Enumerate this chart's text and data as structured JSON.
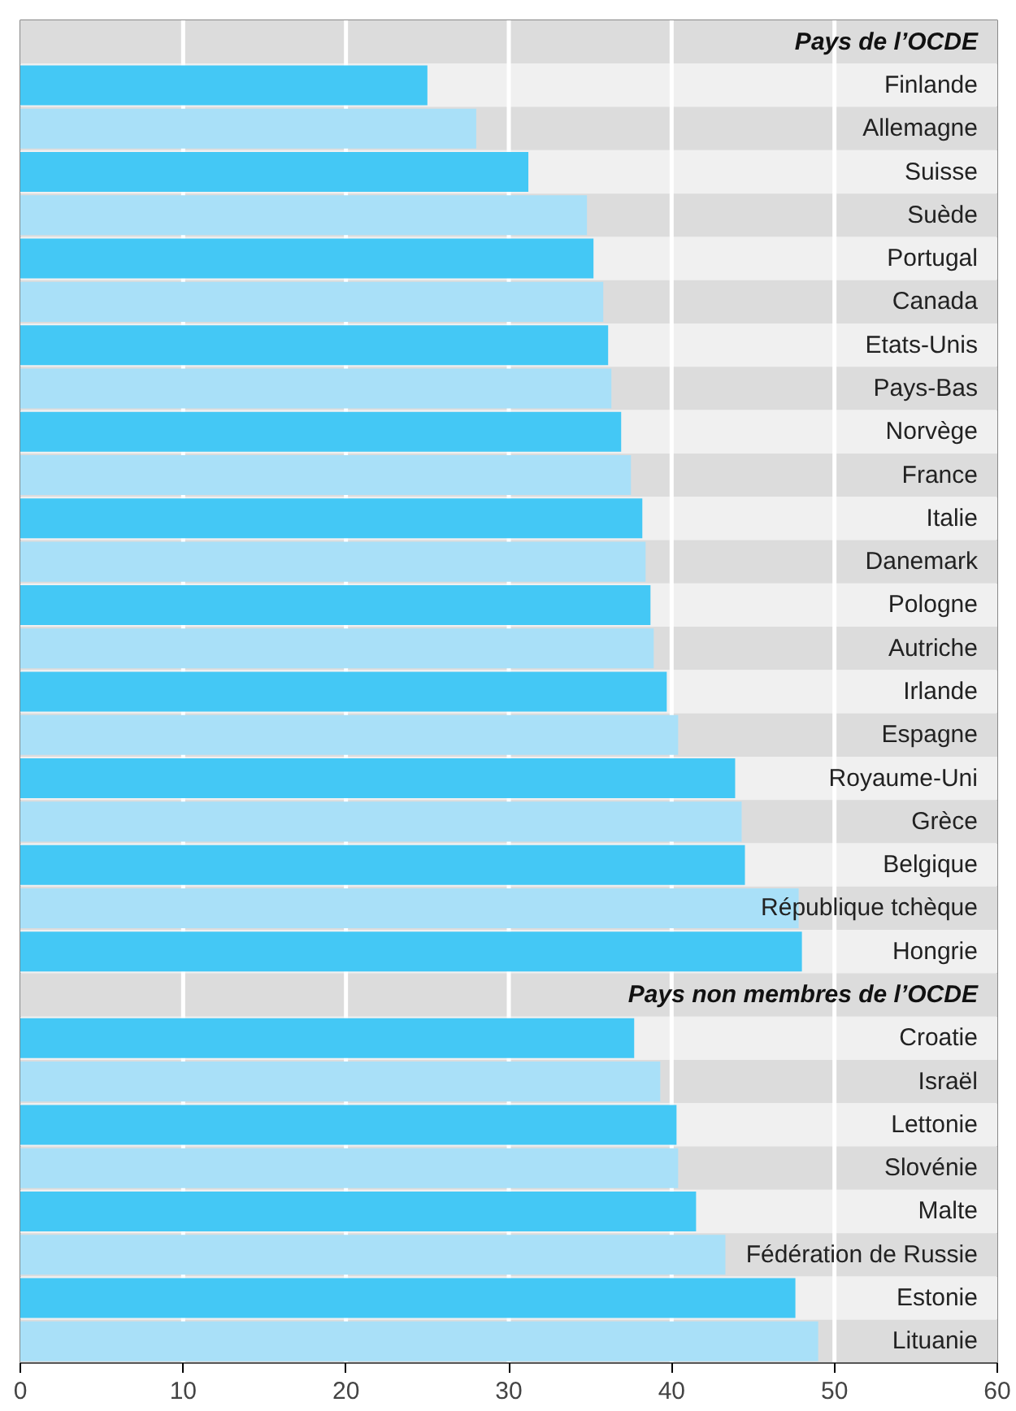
{
  "chart_data": {
    "type": "bar",
    "orientation": "horizontal",
    "categories": [
      null,
      "Finlande",
      "Allemagne",
      "Suisse",
      "Suède",
      "Portugal",
      "Canada",
      "Etats-Unis",
      "Pays-Bas",
      "Norvège",
      "France",
      "Italie",
      "Danemark",
      "Pologne",
      "Autriche",
      "Irlande",
      "Espagne",
      "Royaume-Uni",
      "Grèce",
      "Belgique",
      "République tchèque",
      "Hongrie",
      null,
      "Croatie",
      "Israël",
      "Lettonie",
      "Slovénie",
      "Malte",
      "Fédération de Russie",
      "Estonie",
      "Lituanie"
    ],
    "values": [
      null,
      25.0,
      28.0,
      31.2,
      34.8,
      35.2,
      35.8,
      36.1,
      36.3,
      36.9,
      37.5,
      38.2,
      38.4,
      38.7,
      38.9,
      39.7,
      40.4,
      43.9,
      44.3,
      44.5,
      47.8,
      48.0,
      null,
      37.7,
      39.3,
      40.3,
      40.4,
      41.5,
      43.3,
      47.6,
      49.0
    ],
    "colors": [
      null,
      "#44c8f5",
      "#a9e0f8",
      "#44c8f5",
      "#a9e0f8",
      "#44c8f5",
      "#a9e0f8",
      "#44c8f5",
      "#a9e0f8",
      "#44c8f5",
      "#a9e0f8",
      "#44c8f5",
      "#a9e0f8",
      "#44c8f5",
      "#a9e0f8",
      "#44c8f5",
      "#a9e0f8",
      "#44c8f5",
      "#a9e0f8",
      "#44c8f5",
      "#a9e0f8",
      "#44c8f5",
      null,
      "#44c8f5",
      "#a9e0f8",
      "#44c8f5",
      "#a9e0f8",
      "#44c8f5",
      "#a9e0f8",
      "#44c8f5",
      "#a9e0f8"
    ],
    "annotations": [
      "Pays de l’OCDE",
      "Pays non membres de l’OCDE"
    ],
    "xlim": [
      0,
      60
    ],
    "xticks": [
      0,
      10,
      20,
      30,
      40,
      50,
      60
    ],
    "grid": "x"
  }
}
